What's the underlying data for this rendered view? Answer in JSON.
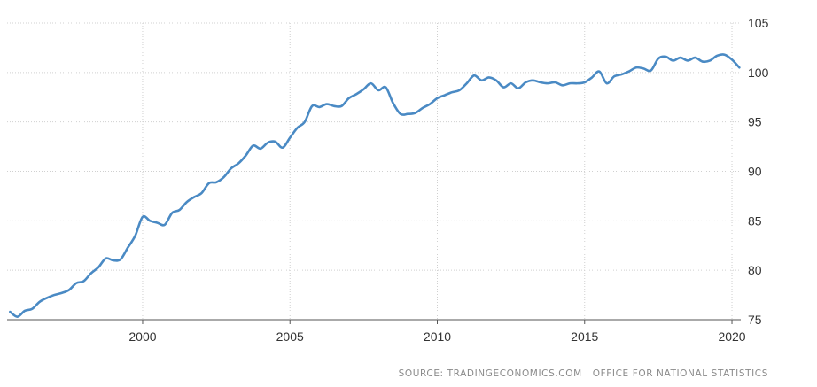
{
  "source": "SOURCE: TRADINGECONOMICS.COM | OFFICE FOR NATIONAL STATISTICS",
  "colors": {
    "line": "#4a8ac4",
    "grid": "#d0d0d0",
    "axis": "#555555"
  },
  "chart_data": {
    "type": "line",
    "title": "",
    "xlabel": "",
    "ylabel": "",
    "x_ticks": [
      "2000",
      "2005",
      "2010",
      "2015",
      "2020"
    ],
    "y_ticks": [
      75,
      80,
      85,
      90,
      95,
      100,
      105
    ],
    "xlim": [
      1995.4,
      2020.3
    ],
    "ylim": [
      75,
      105
    ],
    "grid": true,
    "y_axis_side": "right",
    "series": [
      {
        "x": [
          1995.5,
          1995.75,
          1996.0,
          1996.25,
          1996.5,
          1996.75,
          1997.0,
          1997.25,
          1997.5,
          1997.75,
          1998.0,
          1998.25,
          1998.5,
          1998.75,
          1999.0,
          1999.25,
          1999.5,
          1999.75,
          2000.0,
          2000.25,
          2000.5,
          2000.75,
          2001.0,
          2001.25,
          2001.5,
          2001.75,
          2002.0,
          2002.25,
          2002.5,
          2002.75,
          2003.0,
          2003.25,
          2003.5,
          2003.75,
          2004.0,
          2004.25,
          2004.5,
          2004.75,
          2005.0,
          2005.25,
          2005.5,
          2005.75,
          2006.0,
          2006.25,
          2006.5,
          2006.75,
          2007.0,
          2007.25,
          2007.5,
          2007.75,
          2008.0,
          2008.25,
          2008.5,
          2008.75,
          2009.0,
          2009.25,
          2009.5,
          2009.75,
          2010.0,
          2010.25,
          2010.5,
          2010.75,
          2011.0,
          2011.25,
          2011.5,
          2011.75,
          2012.0,
          2012.25,
          2012.5,
          2012.75,
          2013.0,
          2013.25,
          2013.5,
          2013.75,
          2014.0,
          2014.25,
          2014.5,
          2014.75,
          2015.0,
          2015.25,
          2015.5,
          2015.75,
          2016.0,
          2016.25,
          2016.5,
          2016.75,
          2017.0,
          2017.25,
          2017.5,
          2017.75,
          2018.0,
          2018.25,
          2018.5,
          2018.75,
          2019.0,
          2019.25,
          2019.5,
          2019.75,
          2020.0,
          2020.25
        ],
        "y": [
          75.8,
          75.3,
          75.9,
          76.1,
          76.8,
          77.2,
          77.5,
          77.7,
          78.0,
          78.7,
          78.9,
          79.7,
          80.3,
          81.2,
          81.0,
          81.1,
          82.3,
          83.5,
          85.4,
          85.0,
          84.8,
          84.6,
          85.8,
          86.1,
          86.9,
          87.4,
          87.8,
          88.8,
          88.9,
          89.4,
          90.3,
          90.8,
          91.6,
          92.6,
          92.3,
          92.9,
          93.0,
          92.4,
          93.4,
          94.4,
          95.0,
          96.6,
          96.5,
          96.8,
          96.6,
          96.6,
          97.4,
          97.8,
          98.3,
          98.9,
          98.2,
          98.5,
          96.9,
          95.8,
          95.8,
          95.9,
          96.4,
          96.8,
          97.4,
          97.7,
          98.0,
          98.2,
          98.9,
          99.7,
          99.2,
          99.5,
          99.2,
          98.5,
          98.9,
          98.4,
          99.0,
          99.2,
          99.0,
          98.9,
          99.0,
          98.7,
          98.9,
          98.9,
          99.0,
          99.5,
          100.1,
          98.9,
          99.6,
          99.8,
          100.1,
          100.5,
          100.4,
          100.2,
          101.4,
          101.6,
          101.2,
          101.5,
          101.2,
          101.5,
          101.1,
          101.2,
          101.7,
          101.8,
          101.3,
          100.5
        ]
      }
    ]
  }
}
